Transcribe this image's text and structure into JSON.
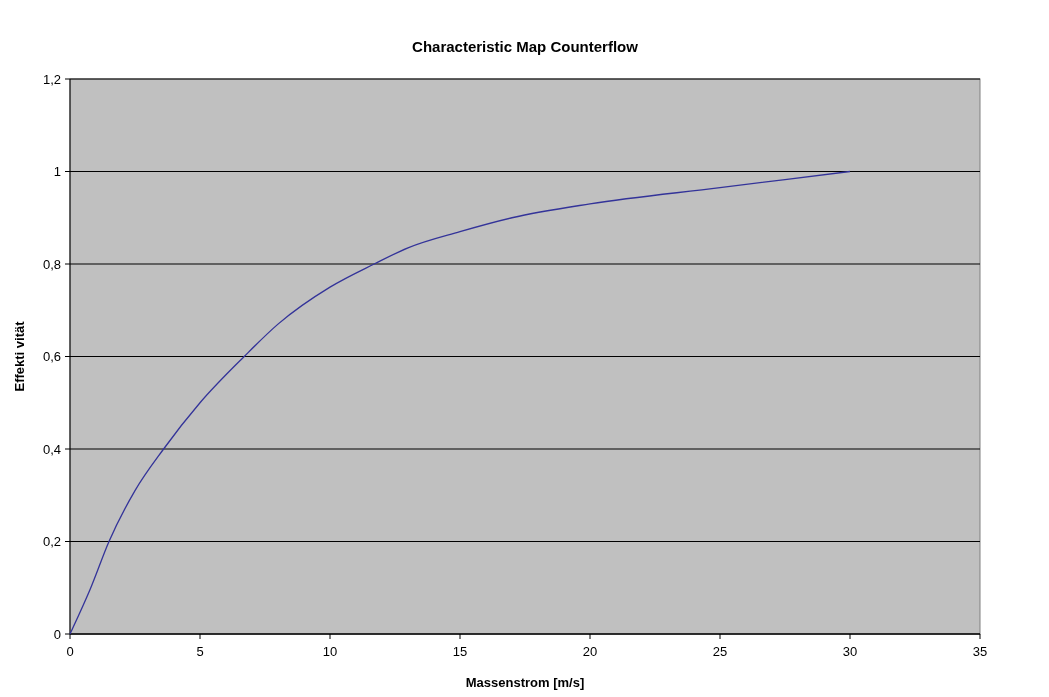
{
  "chart_data": {
    "type": "line",
    "title": "Characteristic Map Counterflow",
    "xlabel": "Massenstrom [m/s]",
    "ylabel": "Effekti vität",
    "x": [
      0,
      0.8,
      1.5,
      2.5,
      3.6,
      5,
      6.7,
      8,
      10,
      11.7,
      13,
      15,
      17,
      20,
      25,
      30
    ],
    "series": [
      {
        "color": "#333399",
        "values": [
          0,
          0.1,
          0.2,
          0.31,
          0.4,
          0.5,
          0.6,
          0.67,
          0.75,
          0.8,
          0.835,
          0.87,
          0.9,
          0.93,
          0.965,
          1
        ]
      }
    ],
    "xlim": [
      0,
      35
    ],
    "xticks": [
      0,
      5,
      10,
      15,
      20,
      25,
      30,
      35
    ],
    "ylim": [
      0,
      1.2
    ],
    "yticks": [
      0,
      {
        "value": 0.2,
        "label": "0,2"
      },
      {
        "value": 0.4,
        "label": "0,4"
      },
      {
        "value": 0.6,
        "label": "0,6"
      },
      {
        "value": 0.8,
        "label": "0,8"
      },
      1,
      {
        "value": 1.2,
        "label": "1,2"
      }
    ],
    "grid": "y",
    "marker": "none",
    "line_style": "solid"
  }
}
